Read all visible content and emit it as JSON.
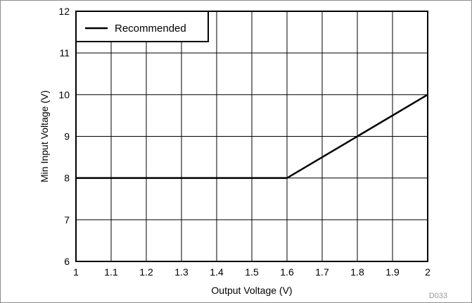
{
  "chart_data": {
    "type": "line",
    "xlabel": "Output Voltage (V)",
    "ylabel": "Min Input Voltage (V)",
    "xlim": [
      1,
      2
    ],
    "ylim": [
      6,
      12
    ],
    "x_ticks": [
      1,
      1.1,
      1.2,
      1.3,
      1.4,
      1.5,
      1.6,
      1.7,
      1.8,
      1.9,
      2
    ],
    "x_tick_labels": [
      "1",
      "1.1",
      "1.2",
      "1.3",
      "1.4",
      "1.5",
      "1.6",
      "1.7",
      "1.8",
      "1.9",
      "2"
    ],
    "y_ticks": [
      6,
      7,
      8,
      9,
      10,
      11,
      12
    ],
    "y_tick_labels": [
      "6",
      "7",
      "8",
      "9",
      "10",
      "11",
      "12"
    ],
    "grid": true,
    "legend": {
      "placement": "top-left",
      "entries": [
        "Recommended"
      ]
    },
    "series": [
      {
        "name": "Recommended",
        "color": "#000000",
        "x": [
          1,
          1.6,
          2
        ],
        "y": [
          8,
          8,
          10
        ]
      }
    ],
    "footnote": "D033"
  }
}
